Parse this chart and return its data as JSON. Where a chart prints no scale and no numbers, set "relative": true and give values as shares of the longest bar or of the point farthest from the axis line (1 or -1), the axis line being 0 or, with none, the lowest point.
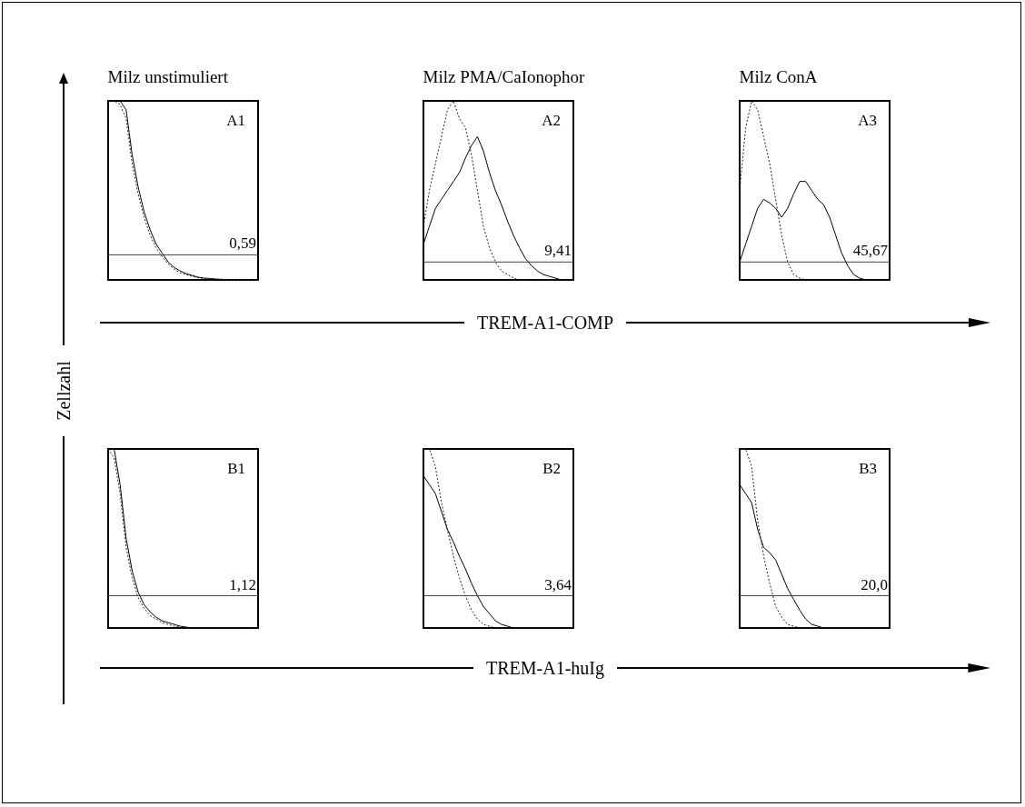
{
  "chart_data": [
    {
      "type": "line",
      "title": "Milz unstimuliert",
      "ylabel": "Zellzahl",
      "relative": true,
      "categories": [
        null,
        null,
        null,
        null,
        null,
        null,
        null,
        null,
        null,
        null,
        null,
        null,
        null,
        null,
        null,
        null,
        null,
        null,
        null,
        null,
        null,
        null,
        null,
        null,
        null,
        null
      ],
      "series": [
        {
          "color": "#000000",
          "line_style": "solid",
          "values": [
            1,
            1,
            1,
            0.95,
            0.7,
            0.52,
            0.38,
            0.28,
            0.2,
            0.15,
            0.1,
            0.07,
            0.05,
            0.035,
            0.025,
            0.015,
            0.01,
            0.008,
            0.005,
            0.003,
            0.002,
            0,
            0,
            0,
            0,
            0
          ]
        },
        {
          "color": "#222222",
          "line_style": "dotted",
          "values": [
            1,
            1,
            0.98,
            0.9,
            0.65,
            0.48,
            0.35,
            0.25,
            0.18,
            0.13,
            0.09,
            0.06,
            0.04,
            0.03,
            0.02,
            0.012,
            0.008,
            0.005,
            0.003,
            0.002,
            0,
            0,
            0,
            0,
            0,
            0
          ]
        }
      ],
      "ref_lines": [
        {
          "axis": "y",
          "value": 0.14
        }
      ],
      "annotations": [
        "A1",
        "0,59"
      ]
    },
    {
      "type": "line",
      "title": "Milz PMA/CaIonophor",
      "xlabel": "TREM-A1-COMP",
      "relative": true,
      "categories": [
        null,
        null,
        null,
        null,
        null,
        null,
        null,
        null,
        null,
        null,
        null,
        null,
        null,
        null,
        null,
        null,
        null,
        null,
        null,
        null,
        null,
        null,
        null,
        null,
        null,
        null
      ],
      "series": [
        {
          "color": "#000000",
          "line_style": "solid",
          "values": [
            0.2,
            0.3,
            0.4,
            0.45,
            0.5,
            0.55,
            0.6,
            0.68,
            0.75,
            0.8,
            0.72,
            0.6,
            0.5,
            0.42,
            0.33,
            0.25,
            0.18,
            0.12,
            0.08,
            0.05,
            0.03,
            0.02,
            0.01,
            0,
            0,
            0
          ]
        },
        {
          "color": "#222222",
          "line_style": "dotted",
          "values": [
            0.3,
            0.5,
            0.65,
            0.8,
            0.95,
            1,
            0.9,
            0.85,
            0.7,
            0.5,
            0.3,
            0.18,
            0.1,
            0.05,
            0.03,
            0.01,
            0,
            0,
            0,
            0,
            0,
            0,
            0,
            0,
            0,
            0
          ]
        }
      ],
      "ref_lines": [
        {
          "axis": "y",
          "value": 0.1
        }
      ],
      "annotations": [
        "A2",
        "9,41"
      ]
    },
    {
      "type": "line",
      "title": "Milz ConA",
      "relative": true,
      "categories": [
        null,
        null,
        null,
        null,
        null,
        null,
        null,
        null,
        null,
        null,
        null,
        null,
        null,
        null,
        null,
        null,
        null,
        null,
        null,
        null,
        null,
        null,
        null,
        null,
        null,
        null
      ],
      "series": [
        {
          "color": "#000000",
          "line_style": "solid",
          "values": [
            0.1,
            0.2,
            0.3,
            0.4,
            0.45,
            0.43,
            0.4,
            0.35,
            0.4,
            0.48,
            0.55,
            0.55,
            0.5,
            0.45,
            0.42,
            0.35,
            0.25,
            0.15,
            0.08,
            0.03,
            0.01,
            0,
            0,
            0,
            0,
            0
          ]
        },
        {
          "color": "#222222",
          "line_style": "dotted",
          "values": [
            0.5,
            0.85,
            1,
            0.95,
            0.8,
            0.65,
            0.45,
            0.25,
            0.1,
            0.03,
            0.01,
            0,
            0,
            0,
            0,
            0,
            0,
            0,
            0,
            0,
            0,
            0,
            0,
            0,
            0,
            0
          ]
        }
      ],
      "ref_lines": [
        {
          "axis": "y",
          "value": 0.1
        }
      ],
      "annotations": [
        "A3",
        "45,67"
      ]
    },
    {
      "type": "line",
      "relative": true,
      "categories": [
        null,
        null,
        null,
        null,
        null,
        null,
        null,
        null,
        null,
        null,
        null,
        null,
        null,
        null,
        null,
        null,
        null,
        null,
        null,
        null,
        null,
        null,
        null,
        null,
        null,
        null
      ],
      "series": [
        {
          "color": "#000000",
          "line_style": "solid",
          "values": [
            1,
            1,
            0.8,
            0.5,
            0.32,
            0.2,
            0.13,
            0.09,
            0.06,
            0.04,
            0.03,
            0.02,
            0.01,
            0.005,
            0,
            0,
            0,
            0,
            0,
            0,
            0,
            0,
            0,
            0,
            0,
            0
          ]
        },
        {
          "color": "#222222",
          "line_style": "dotted",
          "values": [
            1,
            0.95,
            0.75,
            0.45,
            0.28,
            0.17,
            0.11,
            0.07,
            0.05,
            0.03,
            0.02,
            0.01,
            0.005,
            0,
            0,
            0,
            0,
            0,
            0,
            0,
            0,
            0,
            0,
            0,
            0,
            0
          ]
        }
      ],
      "ref_lines": [
        {
          "axis": "y",
          "value": 0.18
        }
      ],
      "annotations": [
        "B1",
        "1,12"
      ]
    },
    {
      "type": "line",
      "xlabel": "TREM-A1-huIg",
      "relative": true,
      "categories": [
        null,
        null,
        null,
        null,
        null,
        null,
        null,
        null,
        null,
        null,
        null,
        null,
        null,
        null,
        null,
        null,
        null,
        null,
        null,
        null,
        null,
        null,
        null,
        null,
        null,
        null
      ],
      "series": [
        {
          "color": "#000000",
          "line_style": "solid",
          "values": [
            0.85,
            0.8,
            0.75,
            0.65,
            0.55,
            0.48,
            0.4,
            0.33,
            0.25,
            0.18,
            0.12,
            0.08,
            0.04,
            0.02,
            0.01,
            0,
            0,
            0,
            0,
            0,
            0,
            0,
            0,
            0,
            0,
            0
          ]
        },
        {
          "color": "#222222",
          "line_style": "dotted",
          "values": [
            1,
            1,
            0.9,
            0.7,
            0.55,
            0.4,
            0.28,
            0.18,
            0.1,
            0.05,
            0.02,
            0.01,
            0,
            0,
            0,
            0,
            0,
            0,
            0,
            0,
            0,
            0,
            0,
            0,
            0,
            0
          ]
        }
      ],
      "ref_lines": [
        {
          "axis": "y",
          "value": 0.18
        }
      ],
      "annotations": [
        "B2",
        "3,64"
      ]
    },
    {
      "type": "line",
      "relative": true,
      "categories": [
        null,
        null,
        null,
        null,
        null,
        null,
        null,
        null,
        null,
        null,
        null,
        null,
        null,
        null,
        null,
        null,
        null,
        null,
        null,
        null,
        null,
        null,
        null,
        null,
        null,
        null
      ],
      "series": [
        {
          "color": "#000000",
          "line_style": "solid",
          "values": [
            0.8,
            0.75,
            0.7,
            0.55,
            0.45,
            0.42,
            0.38,
            0.3,
            0.22,
            0.16,
            0.1,
            0.05,
            0.02,
            0.01,
            0,
            0,
            0,
            0,
            0,
            0,
            0,
            0,
            0,
            0,
            0,
            0
          ]
        },
        {
          "color": "#222222",
          "line_style": "dotted",
          "values": [
            1,
            1,
            0.9,
            0.6,
            0.4,
            0.25,
            0.12,
            0.06,
            0.02,
            0.01,
            0,
            0,
            0,
            0,
            0,
            0,
            0,
            0,
            0,
            0,
            0,
            0,
            0,
            0,
            0,
            0
          ]
        }
      ],
      "ref_lines": [
        {
          "axis": "y",
          "value": 0.18
        }
      ],
      "annotations": [
        "B3",
        "20,0"
      ]
    }
  ]
}
